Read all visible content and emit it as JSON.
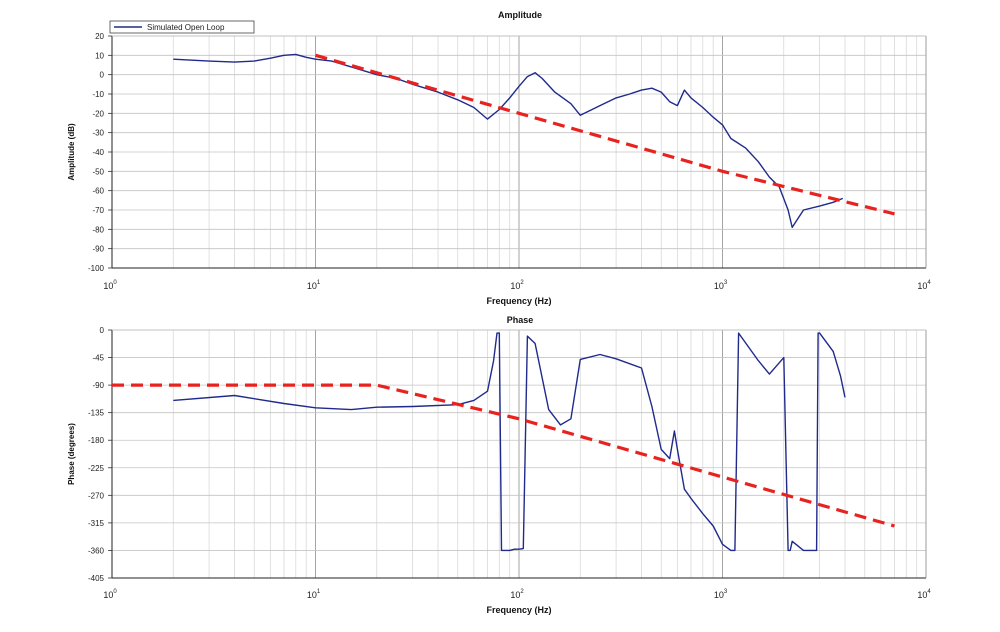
{
  "chart_data": [
    {
      "type": "line",
      "title": "Amplitude",
      "xlabel": "Frequency (Hz)",
      "ylabel": "Amplitude (dB)",
      "xscale": "log",
      "xlim": [
        1,
        10000
      ],
      "ylim": [
        -100,
        20
      ],
      "yticks": [
        20,
        10,
        0,
        -10,
        -20,
        -30,
        -40,
        -50,
        -60,
        -70,
        -80,
        -90,
        -100
      ],
      "ytick_labels": [
        "20",
        "10",
        "0",
        "-10",
        "-20",
        "-30",
        "-40",
        "-50",
        "-60",
        "-70",
        "-80",
        "-90",
        "-100"
      ],
      "xticks": [
        1,
        10,
        100,
        1000,
        10000
      ],
      "xtick_labels": [
        [
          "10",
          "0"
        ],
        [
          "10",
          "1"
        ],
        [
          "10",
          "2"
        ],
        [
          "10",
          "3"
        ],
        [
          "10",
          "4"
        ]
      ],
      "grid": true,
      "legend": {
        "position": "top-left",
        "entries": [
          "Simulated Open Loop"
        ]
      },
      "colors": {
        "measured": "#1f2a8c",
        "asymptote": "#e8231f",
        "grid": "#c8c8c8"
      },
      "series": [
        {
          "name": "Simulated Open Loop",
          "x": [
            2,
            3,
            4,
            5,
            6,
            7,
            8,
            9,
            10,
            12,
            15,
            20,
            25,
            30,
            40,
            50,
            60,
            70,
            80,
            90,
            100,
            110,
            120,
            130,
            150,
            180,
            200,
            250,
            300,
            350,
            400,
            450,
            500,
            550,
            600,
            650,
            700,
            800,
            900,
            1000,
            1100,
            1300,
            1500,
            1700,
            1900,
            2100,
            2200,
            2500,
            3000,
            3500,
            3900
          ],
          "y": [
            8,
            7,
            6.5,
            7,
            8.5,
            10,
            10.5,
            9,
            8,
            7,
            4,
            0,
            -2,
            -5,
            -9,
            -13,
            -17,
            -23,
            -18,
            -12,
            -6,
            -1,
            1,
            -2,
            -9,
            -15,
            -21,
            -16,
            -12,
            -10,
            -8,
            -7,
            -9,
            -14,
            -16,
            -8,
            -12,
            -17,
            -22,
            -26,
            -33,
            -38,
            -45,
            -53,
            -58,
            -70,
            -79,
            -70,
            -68,
            -66,
            -64
          ]
        },
        {
          "x": [
            10,
            100,
            1000,
            7000
          ],
          "y": [
            10,
            -20,
            -50,
            -72
          ]
        }
      ]
    },
    {
      "type": "line",
      "title": "Phase",
      "xlabel": "Frequency (Hz)",
      "ylabel": "Phase (degrees)",
      "xscale": "log",
      "xlim": [
        1,
        10000
      ],
      "ylim": [
        -405,
        0
      ],
      "yticks": [
        0,
        -45,
        -90,
        -135,
        -180,
        -225,
        -270,
        -315,
        -360,
        -405
      ],
      "ytick_labels": [
        "0",
        "-45",
        "-90",
        "-135",
        "-180",
        "-225",
        "-270",
        "-315",
        "-360",
        "-405"
      ],
      "xticks": [
        1,
        10,
        100,
        1000,
        10000
      ],
      "xtick_labels": [
        [
          "10",
          "0"
        ],
        [
          "10",
          "1"
        ],
        [
          "10",
          "2"
        ],
        [
          "10",
          "3"
        ],
        [
          "10",
          "4"
        ]
      ],
      "grid": true,
      "series": [
        {
          "x": [
            2,
            4,
            7,
            10,
            15,
            20,
            30,
            50,
            60,
            70,
            75,
            78,
            80,
            82,
            85,
            90,
            95,
            100,
            105,
            110,
            120,
            140,
            160,
            180,
            200,
            250,
            300,
            400,
            450,
            500,
            550,
            580,
            600,
            650,
            700,
            800,
            900,
            1000,
            1100,
            1150,
            1200,
            1500,
            1700,
            2000,
            2100,
            2150,
            2200,
            2500,
            2900,
            2950,
            3000,
            3500,
            3800,
            4000
          ],
          "y": [
            -115,
            -107,
            -120,
            -127,
            -130,
            -126,
            -125,
            -122,
            -115,
            -100,
            -50,
            -5,
            -5,
            -360,
            -360,
            -360,
            -358,
            -358,
            -357,
            -10,
            -22,
            -130,
            -155,
            -145,
            -48,
            -40,
            -47,
            -62,
            -125,
            -195,
            -210,
            -165,
            -195,
            -260,
            -275,
            -300,
            -320,
            -350,
            -360,
            -360,
            -5,
            -50,
            -72,
            -45,
            -360,
            -360,
            -345,
            -360,
            -360,
            -5,
            -5,
            -35,
            -75,
            -110
          ]
        },
        {
          "x": [
            1,
            20,
            100,
            1000,
            7000
          ],
          "y": [
            -90,
            -90,
            -145,
            -240,
            -320
          ]
        }
      ]
    }
  ]
}
